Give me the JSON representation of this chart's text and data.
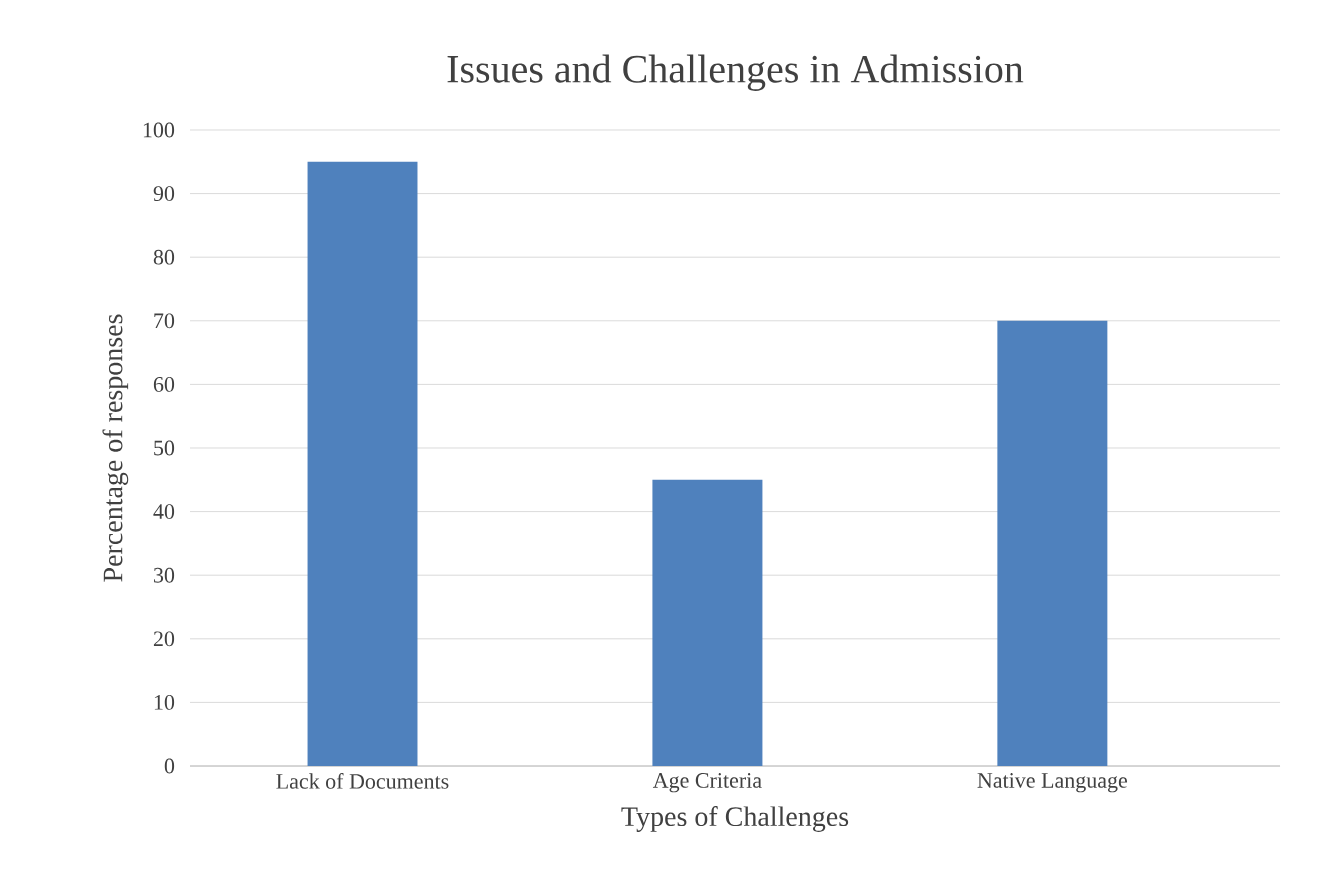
{
  "chart_data": {
    "type": "bar",
    "title": "Issues and Challenges in Admission",
    "xlabel": "Types of Challenges",
    "ylabel": "Percentage of responses",
    "categories": [
      "Lack of Documents",
      "Age Criteria",
      "Native Language"
    ],
    "values": [
      95,
      45,
      70
    ],
    "color": "#4f81bd",
    "ylim": [
      0,
      100
    ],
    "yticks": [
      0,
      10,
      20,
      30,
      40,
      50,
      60,
      70,
      80,
      90,
      100
    ],
    "grid": "y"
  }
}
